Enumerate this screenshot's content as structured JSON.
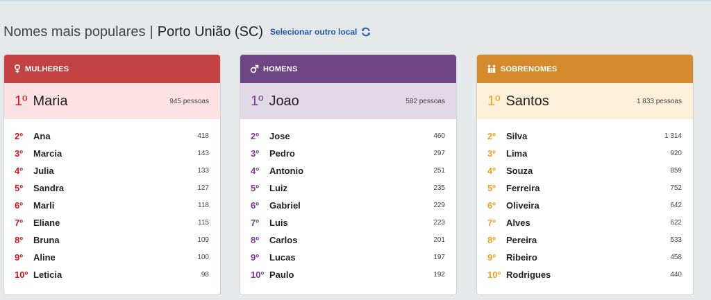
{
  "header": {
    "title": "Nomes mais populares",
    "separator": "|",
    "location": "Porto União (SC)",
    "change_link": "Selecionar outro local"
  },
  "colors": {
    "women": "#c34243",
    "men": "#6f4583",
    "surnames": "#d58a2d",
    "link": "#1f56a8"
  },
  "icons": {
    "women": "female-symbol-icon",
    "men": "male-symbol-icon",
    "surnames": "family-icon",
    "refresh": "refresh-icon"
  },
  "women": {
    "title": "MULHERES",
    "top": {
      "rank": "1º",
      "name": "Maria",
      "count": "945 pessoas"
    },
    "rows": [
      {
        "rank": "2º",
        "name": "Ana",
        "count": "418"
      },
      {
        "rank": "3º",
        "name": "Marcia",
        "count": "143"
      },
      {
        "rank": "4º",
        "name": "Julia",
        "count": "133"
      },
      {
        "rank": "5º",
        "name": "Sandra",
        "count": "127"
      },
      {
        "rank": "6º",
        "name": "Marli",
        "count": "118"
      },
      {
        "rank": "7º",
        "name": "Eliane",
        "count": "115"
      },
      {
        "rank": "8º",
        "name": "Bruna",
        "count": "109"
      },
      {
        "rank": "9º",
        "name": "Aline",
        "count": "100"
      },
      {
        "rank": "10º",
        "name": "Leticia",
        "count": "98"
      }
    ]
  },
  "men": {
    "title": "HOMENS",
    "top": {
      "rank": "1º",
      "name": "Joao",
      "count": "582 pessoas"
    },
    "rows": [
      {
        "rank": "2º",
        "name": "Jose",
        "count": "460"
      },
      {
        "rank": "3º",
        "name": "Pedro",
        "count": "297"
      },
      {
        "rank": "4º",
        "name": "Antonio",
        "count": "251"
      },
      {
        "rank": "5º",
        "name": "Luiz",
        "count": "235"
      },
      {
        "rank": "6º",
        "name": "Gabriel",
        "count": "229"
      },
      {
        "rank": "7º",
        "name": "Luis",
        "count": "223"
      },
      {
        "rank": "8º",
        "name": "Carlos",
        "count": "201"
      },
      {
        "rank": "9º",
        "name": "Lucas",
        "count": "197"
      },
      {
        "rank": "10º",
        "name": "Paulo",
        "count": "192"
      }
    ]
  },
  "surnames": {
    "title": "SOBRENOMES",
    "top": {
      "rank": "1º",
      "name": "Santos",
      "count": "1 833 pessoas"
    },
    "rows": [
      {
        "rank": "2º",
        "name": "Silva",
        "count": "1 314"
      },
      {
        "rank": "3º",
        "name": "Lima",
        "count": "920"
      },
      {
        "rank": "4º",
        "name": "Souza",
        "count": "859"
      },
      {
        "rank": "5º",
        "name": "Ferreira",
        "count": "752"
      },
      {
        "rank": "6º",
        "name": "Oliveira",
        "count": "642"
      },
      {
        "rank": "7º",
        "name": "Alves",
        "count": "622"
      },
      {
        "rank": "8º",
        "name": "Pereira",
        "count": "533"
      },
      {
        "rank": "9º",
        "name": "Ribeiro",
        "count": "458"
      },
      {
        "rank": "10º",
        "name": "Rodrigues",
        "count": "440"
      }
    ]
  }
}
